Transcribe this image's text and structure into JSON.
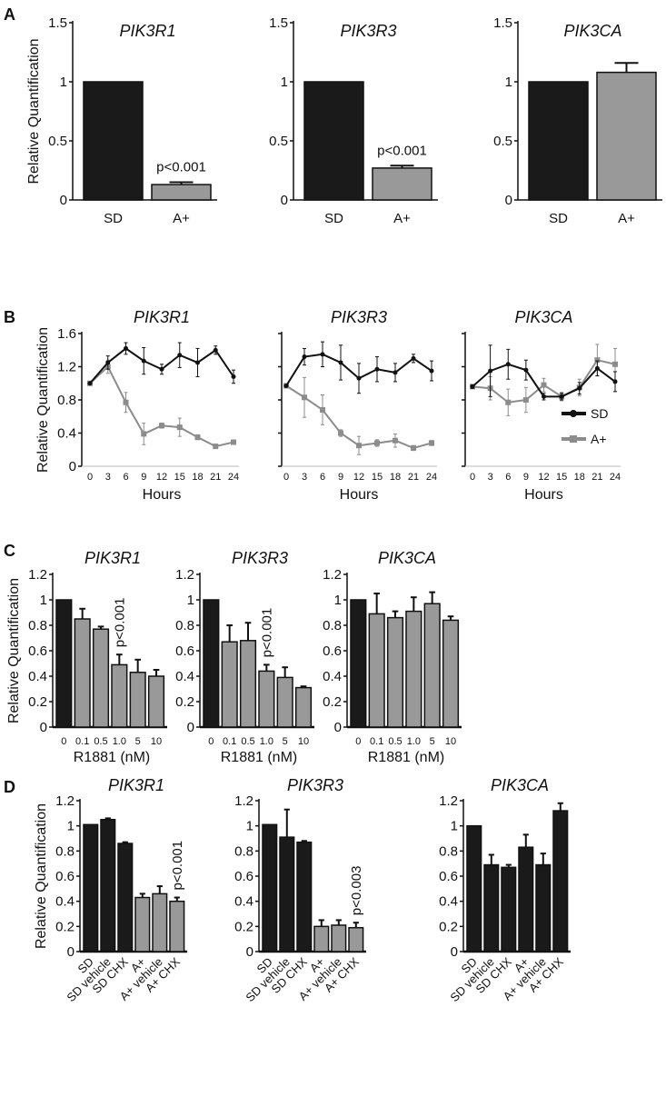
{
  "chart_data": [
    {
      "panel": "A",
      "type": "bar",
      "ylabel": "Relative Quantification",
      "ylim": [
        0,
        1.5
      ],
      "yticks": [
        "0",
        "0.5",
        "1",
        "1.5"
      ],
      "colors": {
        "SD": "#1a1a1a",
        "A+": "#999999"
      },
      "charts": [
        {
          "title": "PIK3R1",
          "categories": [
            "SD",
            "A+"
          ],
          "values": [
            1.0,
            0.13
          ],
          "errors": [
            0,
            0.02
          ],
          "annotation": "p<0.001"
        },
        {
          "title": "PIK3R3",
          "categories": [
            "SD",
            "A+"
          ],
          "values": [
            1.0,
            0.27
          ],
          "errors": [
            0,
            0.02
          ],
          "annotation": "p<0.001"
        },
        {
          "title": "PIK3CA",
          "categories": [
            "SD",
            "A+"
          ],
          "values": [
            1.0,
            1.08
          ],
          "errors": [
            0,
            0.08
          ],
          "annotation": ""
        }
      ]
    },
    {
      "panel": "B",
      "type": "line",
      "ylabel": "Relative Quantification",
      "xlabel": "Hours",
      "ylim": [
        0,
        1.6
      ],
      "yticks": [
        "0",
        "0.4",
        "0.8",
        "1.2",
        "1.6"
      ],
      "x": [
        0,
        3,
        6,
        9,
        12,
        15,
        18,
        21,
        24
      ],
      "legend": [
        "SD",
        "A+"
      ],
      "legend_position": "right",
      "colors": {
        "SD": "#111111",
        "A+": "#8c8c8c"
      },
      "charts": [
        {
          "title": "PIK3R1",
          "series": [
            {
              "name": "SD",
              "values": [
                1.0,
                1.25,
                1.42,
                1.27,
                1.17,
                1.34,
                1.25,
                1.4,
                1.08
              ],
              "errors": [
                0,
                0.08,
                0.07,
                0.16,
                0.06,
                0.15,
                0.17,
                0.05,
                0.08
              ]
            },
            {
              "name": "A+",
              "values": [
                1.0,
                1.2,
                0.77,
                0.39,
                0.49,
                0.47,
                0.35,
                0.24,
                0.29
              ],
              "errors": [
                0.02,
                0.08,
                0.12,
                0.13,
                0.03,
                0.11,
                0.03,
                0.02,
                0.02
              ]
            }
          ]
        },
        {
          "title": "PIK3R3",
          "series": [
            {
              "name": "SD",
              "values": [
                0.97,
                1.32,
                1.35,
                1.25,
                1.06,
                1.17,
                1.13,
                1.3,
                1.15
              ],
              "errors": [
                0,
                0.1,
                0.15,
                0.21,
                0.18,
                0.15,
                0.11,
                0.05,
                0.12
              ]
            },
            {
              "name": "A+",
              "values": [
                0.97,
                0.83,
                0.68,
                0.4,
                0.25,
                0.28,
                0.31,
                0.22,
                0.28
              ],
              "errors": [
                0.01,
                0.24,
                0.18,
                0.04,
                0.11,
                0.04,
                0.08,
                0.03,
                0.03
              ]
            }
          ]
        },
        {
          "title": "PIK3CA",
          "series": [
            {
              "name": "SD",
              "values": [
                0.96,
                1.15,
                1.23,
                1.16,
                0.84,
                0.84,
                0.94,
                1.18,
                1.02
              ],
              "errors": [
                0.02,
                0.31,
                0.18,
                0.12,
                0.04,
                0.04,
                0.07,
                0.09,
                0.12
              ]
            },
            {
              "name": "A+",
              "values": [
                0.96,
                0.94,
                0.77,
                0.8,
                0.98,
                0.84,
                0.95,
                1.28,
                1.23
              ],
              "errors": [
                0.02,
                0.14,
                0.16,
                0.15,
                0.08,
                0.05,
                0.1,
                0.19,
                0.19
              ]
            }
          ]
        }
      ]
    },
    {
      "panel": "C",
      "type": "bar",
      "ylabel": "Relative Quantification",
      "xlabel": "R1881 (nM)",
      "ylim": [
        0,
        1.2
      ],
      "yticks": [
        "0",
        "0.2",
        "0.4",
        "0.6",
        "0.8",
        "1",
        "1.2"
      ],
      "categories": [
        "0",
        "0.1",
        "0.5",
        "1.0",
        "5",
        "10"
      ],
      "bar_colors": [
        "#1a1a1a",
        "#999999",
        "#999999",
        "#999999",
        "#999999",
        "#999999"
      ],
      "charts": [
        {
          "title": "PIK3R1",
          "values": [
            1.0,
            0.85,
            0.77,
            0.49,
            0.43,
            0.4
          ],
          "errors": [
            0,
            0.08,
            0.02,
            0.08,
            0.1,
            0.05
          ],
          "annotation": "p<0.001"
        },
        {
          "title": "PIK3R3",
          "values": [
            1.0,
            0.67,
            0.68,
            0.44,
            0.39,
            0.31
          ],
          "errors": [
            0,
            0.13,
            0.14,
            0.05,
            0.08,
            0.01
          ],
          "annotation": "p<0.001"
        },
        {
          "title": "PIK3CA",
          "values": [
            1.0,
            0.89,
            0.86,
            0.91,
            0.97,
            0.84
          ],
          "errors": [
            0,
            0.16,
            0.05,
            0.11,
            0.09,
            0.03
          ],
          "annotation": ""
        }
      ]
    },
    {
      "panel": "D",
      "type": "bar",
      "ylabel": "Relative Quantification",
      "ylim": [
        0,
        1.2
      ],
      "yticks": [
        "0",
        "0.2",
        "0.4",
        "0.6",
        "0.8",
        "1",
        "1.2"
      ],
      "categories": [
        "SD",
        "SD vehicle",
        "SD CHX",
        "A+",
        "A+ vehicle",
        "A+ CHX"
      ],
      "charts": [
        {
          "title": "PIK3R1",
          "values": [
            1.01,
            1.05,
            0.86,
            0.43,
            0.46,
            0.4
          ],
          "errors": [
            0,
            0.01,
            0.01,
            0.03,
            0.06,
            0.03
          ],
          "bar_colors": [
            "#1a1a1a",
            "#1a1a1a",
            "#1a1a1a",
            "#999999",
            "#999999",
            "#999999"
          ],
          "annotation": "p<0.001"
        },
        {
          "title": "PIK3R3",
          "values": [
            1.01,
            0.91,
            0.87,
            0.2,
            0.21,
            0.19
          ],
          "errors": [
            0,
            0.22,
            0.01,
            0.05,
            0.04,
            0.04
          ],
          "bar_colors": [
            "#1a1a1a",
            "#1a1a1a",
            "#1a1a1a",
            "#999999",
            "#999999",
            "#999999"
          ],
          "annotation": "p<0.003"
        },
        {
          "title": "PIK3CA",
          "values": [
            1.0,
            0.69,
            0.67,
            0.83,
            0.69,
            1.12
          ],
          "errors": [
            0,
            0.08,
            0.02,
            0.1,
            0.09,
            0.06
          ],
          "bar_colors": [
            "#1a1a1a",
            "#1a1a1a",
            "#1a1a1a",
            "#1a1a1a",
            "#1a1a1a",
            "#1a1a1a"
          ],
          "annotation": ""
        }
      ]
    }
  ]
}
